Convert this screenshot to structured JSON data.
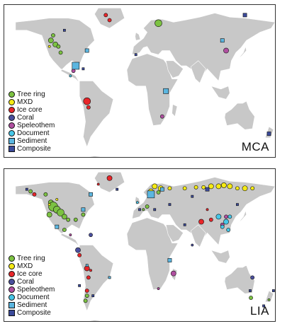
{
  "colors": {
    "land": "#c8c8c8",
    "tree_ring": "#7cc242",
    "mxd": "#f5ea14",
    "ice_core": "#e8262a",
    "coral": "#4a4f9e",
    "speleothem": "#b04fa0",
    "document": "#46c7e8",
    "sediment": "#5bb6e0",
    "composite": "#3b4a9a"
  },
  "legend": [
    {
      "key": "tree_ring",
      "label": "Tree ring",
      "shape": "circle"
    },
    {
      "key": "mxd",
      "label": "MXD",
      "shape": "circle"
    },
    {
      "key": "ice_core",
      "label": "Ice core",
      "shape": "circle"
    },
    {
      "key": "coral",
      "label": "Coral",
      "shape": "circle"
    },
    {
      "key": "speleothem",
      "label": "Speleothem",
      "shape": "circle"
    },
    {
      "key": "document",
      "label": "Document",
      "shape": "circle"
    },
    {
      "key": "sediment",
      "label": "Sediment",
      "shape": "square"
    },
    {
      "key": "composite",
      "label": "Composite",
      "shape": "square"
    }
  ],
  "panels": [
    {
      "id": "mca",
      "label": "MCA",
      "sites": [
        {
          "type": "tree_ring",
          "lon": -115,
          "lat": 55,
          "size": 2
        },
        {
          "type": "tree_ring",
          "lon": -118,
          "lat": 50,
          "size": 3
        },
        {
          "type": "tree_ring",
          "lon": -112,
          "lat": 46,
          "size": 3
        },
        {
          "type": "tree_ring",
          "lon": -108,
          "lat": 44,
          "size": 2
        },
        {
          "type": "tree_ring",
          "lon": -105,
          "lat": 38,
          "size": 2
        },
        {
          "type": "tree_ring",
          "lon": 25,
          "lat": 67,
          "size": 4
        },
        {
          "type": "mxd",
          "lon": -120,
          "lat": 44,
          "size": 1
        },
        {
          "type": "ice_core",
          "lon": -45,
          "lat": 75,
          "size": 2
        },
        {
          "type": "ice_core",
          "lon": -40,
          "lat": 70,
          "size": 2
        },
        {
          "type": "ice_core",
          "lon": -70,
          "lat": -10,
          "size": 4
        },
        {
          "type": "ice_core",
          "lon": -68,
          "lat": -16,
          "size": 2
        },
        {
          "type": "speleothem",
          "lon": -88,
          "lat": 20,
          "size": 2
        },
        {
          "type": "speleothem",
          "lon": 115,
          "lat": 40,
          "size": 3
        },
        {
          "type": "speleothem",
          "lon": 30,
          "lat": -25,
          "size": 2
        },
        {
          "type": "document",
          "lon": -92,
          "lat": 15,
          "size": 1
        },
        {
          "type": "sediment",
          "lon": -70,
          "lat": 40,
          "size": 2
        },
        {
          "type": "sediment",
          "lon": -85,
          "lat": 25,
          "size": 4
        },
        {
          "type": "sediment",
          "lon": 35,
          "lat": 0,
          "size": 3
        },
        {
          "type": "sediment",
          "lon": 110,
          "lat": 50,
          "size": 2
        },
        {
          "type": "composite",
          "lon": -100,
          "lat": 60,
          "size": 1
        },
        {
          "type": "composite",
          "lon": -75,
          "lat": 22,
          "size": 1
        },
        {
          "type": "composite",
          "lon": 140,
          "lat": 75,
          "size": 2
        },
        {
          "type": "composite",
          "lon": 172,
          "lat": -42,
          "size": 2
        },
        {
          "type": "composite",
          "lon": -5,
          "lat": 36,
          "size": 1
        }
      ]
    },
    {
      "id": "lia",
      "label": "LIA",
      "sites": [
        {
          "type": "tree_ring",
          "lon": -125,
          "lat": 60,
          "size": 2
        },
        {
          "type": "tree_ring",
          "lon": -118,
          "lat": 52,
          "size": 3
        },
        {
          "type": "tree_ring",
          "lon": -115,
          "lat": 48,
          "size": 5
        },
        {
          "type": "tree_ring",
          "lon": -110,
          "lat": 45,
          "size": 4
        },
        {
          "type": "tree_ring",
          "lon": -105,
          "lat": 42,
          "size": 4
        },
        {
          "type": "tree_ring",
          "lon": -100,
          "lat": 38,
          "size": 3
        },
        {
          "type": "tree_ring",
          "lon": -120,
          "lat": 40,
          "size": 3
        },
        {
          "type": "tree_ring",
          "lon": -95,
          "lat": 35,
          "size": 2
        },
        {
          "type": "tree_ring",
          "lon": -85,
          "lat": 35,
          "size": 2
        },
        {
          "type": "tree_ring",
          "lon": -75,
          "lat": 40,
          "size": 2
        },
        {
          "type": "tree_ring",
          "lon": -100,
          "lat": 25,
          "size": 2
        },
        {
          "type": "tree_ring",
          "lon": -70,
          "lat": -40,
          "size": 2
        },
        {
          "type": "tree_ring",
          "lon": -72,
          "lat": -45,
          "size": 2
        },
        {
          "type": "tree_ring",
          "lon": 10,
          "lat": 48,
          "size": 2
        },
        {
          "type": "tree_ring",
          "lon": 5,
          "lat": 45,
          "size": 1
        },
        {
          "type": "tree_ring",
          "lon": 25,
          "lat": 62,
          "size": 2
        },
        {
          "type": "tree_ring",
          "lon": 148,
          "lat": -42,
          "size": 2
        },
        {
          "type": "tree_ring",
          "lon": 172,
          "lat": -44,
          "size": 1
        },
        {
          "type": "tree_ring",
          "lon": -145,
          "lat": 63,
          "size": 2
        },
        {
          "type": "mxd",
          "lon": 20,
          "lat": 68,
          "size": 3
        },
        {
          "type": "mxd",
          "lon": 28,
          "lat": 66,
          "size": 3
        },
        {
          "type": "mxd",
          "lon": 15,
          "lat": 63,
          "size": 3
        },
        {
          "type": "mxd",
          "lon": 40,
          "lat": 66,
          "size": 2
        },
        {
          "type": "mxd",
          "lon": 60,
          "lat": 66,
          "size": 2
        },
        {
          "type": "mxd",
          "lon": 75,
          "lat": 67,
          "size": 2
        },
        {
          "type": "mxd",
          "lon": 85,
          "lat": 67,
          "size": 2
        },
        {
          "type": "mxd",
          "lon": 95,
          "lat": 68,
          "size": 3
        },
        {
          "type": "mxd",
          "lon": 105,
          "lat": 68,
          "size": 3
        },
        {
          "type": "mxd",
          "lon": 112,
          "lat": 69,
          "size": 3
        },
        {
          "type": "mxd",
          "lon": 120,
          "lat": 68,
          "size": 3
        },
        {
          "type": "mxd",
          "lon": 130,
          "lat": 66,
          "size": 2
        },
        {
          "type": "mxd",
          "lon": 140,
          "lat": 66,
          "size": 3
        },
        {
          "type": "mxd",
          "lon": 150,
          "lat": 66,
          "size": 2
        },
        {
          "type": "mxd",
          "lon": -120,
          "lat": 50,
          "size": 1
        },
        {
          "type": "mxd",
          "lon": -110,
          "lat": 55,
          "size": 1
        },
        {
          "type": "ice_core",
          "lon": -40,
          "lat": 76,
          "size": 3
        },
        {
          "type": "ice_core",
          "lon": -55,
          "lat": 70,
          "size": 1
        },
        {
          "type": "ice_core",
          "lon": -140,
          "lat": 60,
          "size": 2
        },
        {
          "type": "ice_core",
          "lon": -80,
          "lat": 0,
          "size": 2
        },
        {
          "type": "ice_core",
          "lon": -70,
          "lat": -13,
          "size": 3
        },
        {
          "type": "ice_core",
          "lon": -68,
          "lat": -22,
          "size": 2
        },
        {
          "type": "ice_core",
          "lon": -70,
          "lat": -35,
          "size": 2
        },
        {
          "type": "ice_core",
          "lon": 82,
          "lat": 33,
          "size": 3
        },
        {
          "type": "ice_core",
          "lon": 95,
          "lat": 35,
          "size": 2
        },
        {
          "type": "ice_core",
          "lon": 90,
          "lat": 45,
          "size": 1
        },
        {
          "type": "ice_core",
          "lon": -65,
          "lat": -15,
          "size": 1
        },
        {
          "type": "ice_core",
          "lon": -40,
          "lat": -22,
          "size": 1
        },
        {
          "type": "ice_core",
          "lon": 175,
          "lat": -78,
          "size": 1
        },
        {
          "type": "coral",
          "lon": -82,
          "lat": 5,
          "size": 3
        },
        {
          "type": "coral",
          "lon": -65,
          "lat": 20,
          "size": 2
        },
        {
          "type": "coral",
          "lon": 70,
          "lat": 10,
          "size": 1
        },
        {
          "type": "coral",
          "lon": 150,
          "lat": -22,
          "size": 2
        },
        {
          "type": "speleothem",
          "lon": 45,
          "lat": -18,
          "size": 3
        },
        {
          "type": "speleothem",
          "lon": 110,
          "lat": 30,
          "size": 2
        },
        {
          "type": "speleothem",
          "lon": 115,
          "lat": 38,
          "size": 2
        },
        {
          "type": "speleothem",
          "lon": 25,
          "lat": -33,
          "size": 1
        },
        {
          "type": "speleothem",
          "lon": -92,
          "lat": 20,
          "size": 1
        },
        {
          "type": "document",
          "lon": 105,
          "lat": 38,
          "size": 3
        },
        {
          "type": "document",
          "lon": 115,
          "lat": 33,
          "size": 3
        },
        {
          "type": "document",
          "lon": 120,
          "lat": 38,
          "size": 2
        },
        {
          "type": "document",
          "lon": 110,
          "lat": 28,
          "size": 2
        },
        {
          "type": "document",
          "lon": 118,
          "lat": 25,
          "size": 2
        },
        {
          "type": "document",
          "lon": -3,
          "lat": 52,
          "size": 1
        },
        {
          "type": "sediment",
          "lon": -75,
          "lat": 45,
          "size": 2
        },
        {
          "type": "sediment",
          "lon": -65,
          "lat": 60,
          "size": 2
        },
        {
          "type": "sediment",
          "lon": -110,
          "lat": 28,
          "size": 2
        },
        {
          "type": "sediment",
          "lon": 15,
          "lat": 60,
          "size": 4
        },
        {
          "type": "sediment",
          "lon": 40,
          "lat": -5,
          "size": 2
        },
        {
          "type": "sediment",
          "lon": -70,
          "lat": -10,
          "size": 1
        },
        {
          "type": "sediment",
          "lon": 30,
          "lat": 65,
          "size": 2
        },
        {
          "type": "sediment",
          "lon": -40,
          "lat": -22,
          "size": 1
        },
        {
          "type": "composite",
          "lon": -150,
          "lat": 65,
          "size": 1
        },
        {
          "type": "composite",
          "lon": 90,
          "lat": 65,
          "size": 2
        },
        {
          "type": "composite",
          "lon": 0,
          "lat": 45,
          "size": 1
        },
        {
          "type": "composite",
          "lon": 20,
          "lat": 45,
          "size": 1
        },
        {
          "type": "composite",
          "lon": 40,
          "lat": 50,
          "size": 1
        },
        {
          "type": "composite",
          "lon": 60,
          "lat": 30,
          "size": 1
        },
        {
          "type": "composite",
          "lon": -30,
          "lat": 65,
          "size": 1
        },
        {
          "type": "composite",
          "lon": -62,
          "lat": -40,
          "size": 1
        },
        {
          "type": "composite",
          "lon": -80,
          "lat": -30,
          "size": 1
        },
        {
          "type": "composite",
          "lon": 147,
          "lat": -35,
          "size": 1
        },
        {
          "type": "composite",
          "lon": 165,
          "lat": -50,
          "size": 1
        },
        {
          "type": "composite",
          "lon": 178,
          "lat": -35,
          "size": 1
        },
        {
          "type": "composite",
          "lon": 70,
          "lat": 58,
          "size": 1
        },
        {
          "type": "composite",
          "lon": 130,
          "lat": 50,
          "size": 1
        }
      ]
    }
  ]
}
